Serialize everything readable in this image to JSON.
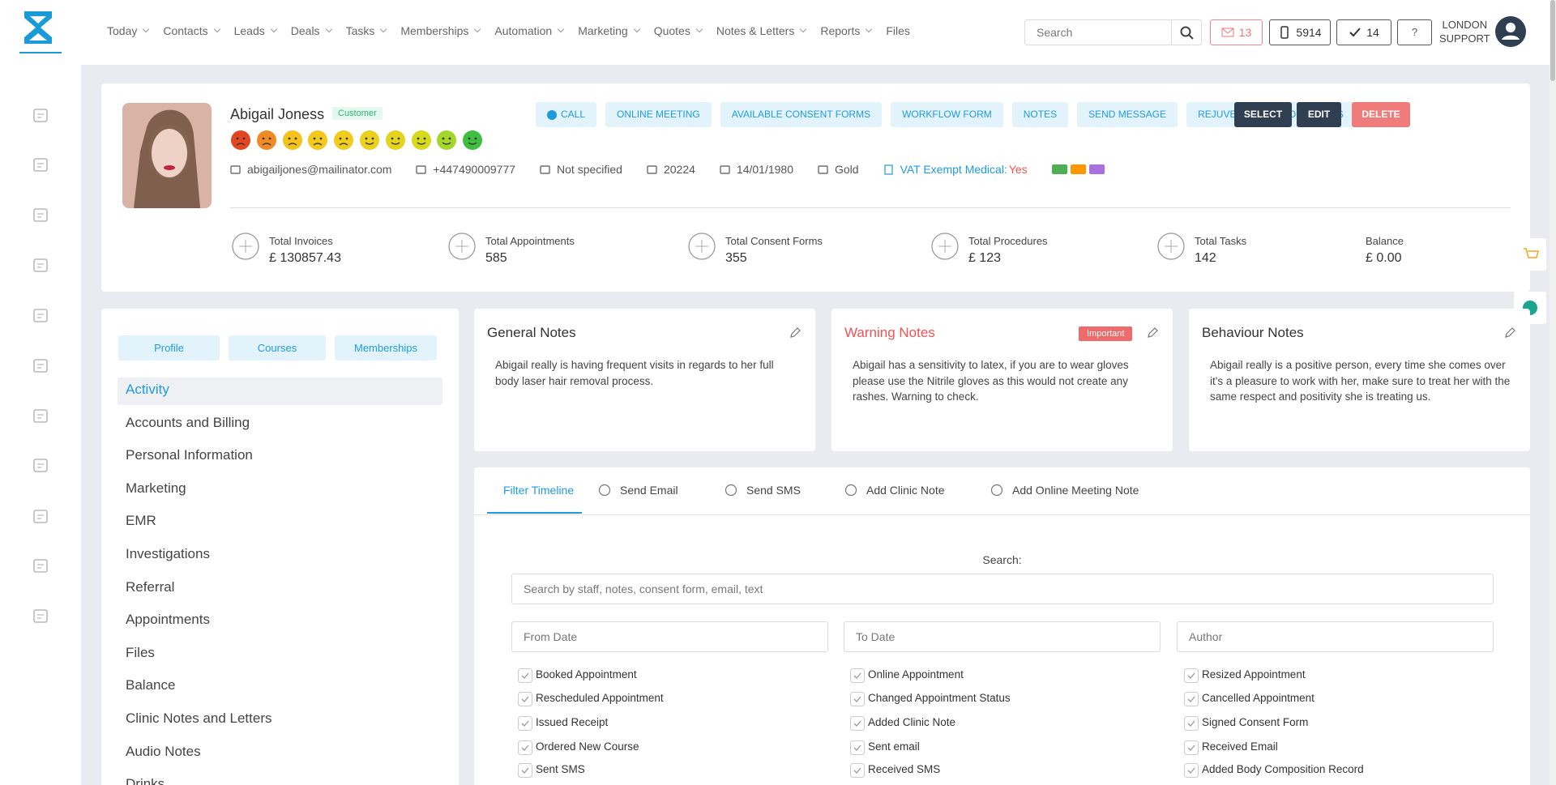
{
  "nav": {
    "items": [
      "Today",
      "Contacts",
      "Leads",
      "Deals",
      "Tasks",
      "Memberships",
      "Automation",
      "Marketing",
      "Quotes",
      "Notes & Letters",
      "Reports",
      "Files"
    ],
    "search_placeholder": "Search",
    "badges": {
      "mail": "13",
      "phone": "5914",
      "tasks": "14"
    },
    "user": [
      "LONDON",
      "SUPPORT"
    ]
  },
  "profile": {
    "name": "Abigail Joness",
    "tag": "Customer",
    "details": {
      "email": "abigailjones@mailinator.com",
      "phone": "+447490009777",
      "gender": "Not specified",
      "id": "20224",
      "dob": "14/01/1980",
      "tier": "Gold",
      "vat_label": "VAT Exempt Medical:",
      "vat_value": "Yes"
    },
    "actions": [
      "CALL",
      "ONLINE MEETING",
      "AVAILABLE CONSENT FORMS",
      "WORKFLOW FORM",
      "NOTES",
      "SEND MESSAGE",
      "REJUVENATION PROCEDURES"
    ],
    "buttons": [
      "SELECT",
      "EDIT",
      "DELETE"
    ],
    "stats": [
      {
        "label": "Total Invoices",
        "value": "£ 130857.43"
      },
      {
        "label": "Total Appointments",
        "value": "585"
      },
      {
        "label": "Total Consent Forms",
        "value": "355"
      },
      {
        "label": "Total Procedures",
        "value": "£ 123"
      },
      {
        "label": "Total Tasks",
        "value": "142"
      },
      {
        "label": "Balance",
        "value": "£ 0.00"
      }
    ]
  },
  "side": {
    "tabs": [
      "Profile",
      "Courses",
      "Memberships"
    ],
    "menu": [
      "Activity",
      "Accounts and Billing",
      "Personal Information",
      "Marketing",
      "EMR",
      "Investigations",
      "Referral",
      "Appointments",
      "Files",
      "Balance",
      "Clinic Notes and Letters",
      "Audio Notes",
      "Drinks"
    ]
  },
  "notes": [
    {
      "title": "General Notes",
      "text": "Abigail really is having frequent visits in regards to her full body laser hair removal process."
    },
    {
      "title": "Warning Notes",
      "badge": "Important",
      "text": "Abigail has a sensitivity to latex, if you are to wear gloves please use the Nitrile gloves as this would not create any rashes. Warning to check."
    },
    {
      "title": "Behaviour Notes",
      "text": "Abigail really is a positive person, every time she comes over it's a pleasure to work with her, make sure to treat her with the same respect and positivity she is treating us."
    }
  ],
  "timeline": {
    "tabs": [
      "Filter Timeline",
      "Send Email",
      "Send SMS",
      "Add Clinic Note",
      "Add Online Meeting Note"
    ],
    "search_label": "Search:",
    "search_placeholder": "Search by staff, notes, consent form, email, text",
    "filters": [
      "From Date",
      "To Date",
      "Author"
    ],
    "checks": [
      [
        "Booked Appointment",
        "Online Appointment",
        "Resized Appointment"
      ],
      [
        "Rescheduled Appointment",
        "Changed Appointment Status",
        "Cancelled Appointment"
      ],
      [
        "Issued Receipt",
        "Added Clinic Note",
        "Signed Consent Form"
      ],
      [
        "Ordered New Course",
        "Sent email",
        "Received Email"
      ],
      [
        "Sent SMS",
        "Received SMS",
        "Added Body Composition Record"
      ]
    ]
  }
}
